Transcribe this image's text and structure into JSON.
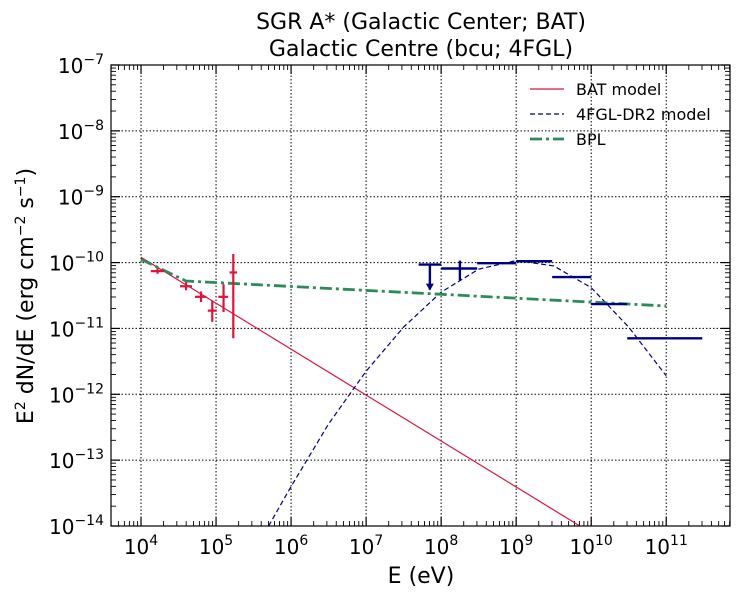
{
  "chart_data": {
    "type": "line",
    "title_lines": [
      "SGR A* (Galactic Center; BAT)",
      "Galactic Centre (bcu; 4FGL)"
    ],
    "xlabel": "E (eV)",
    "ylabel": {
      "main": "E",
      "sup1": "2",
      "mid": " dN/dE (erg cm",
      "sup2": "−2",
      "mid2": " s",
      "sup3": "−1",
      "end": ")"
    },
    "xscale": "log",
    "yscale": "log",
    "xlim_log10": [
      3.6,
      11.85
    ],
    "ylim_log10": [
      -14,
      -7
    ],
    "grid": true,
    "legend_position": "top-right",
    "x_ticks": [
      {
        "base": "10",
        "exp": "4",
        "log": 4
      },
      {
        "base": "10",
        "exp": "5",
        "log": 5
      },
      {
        "base": "10",
        "exp": "6",
        "log": 6
      },
      {
        "base": "10",
        "exp": "7",
        "log": 7
      },
      {
        "base": "10",
        "exp": "8",
        "log": 8
      },
      {
        "base": "10",
        "exp": "9",
        "log": 9
      },
      {
        "base": "10",
        "exp": "10",
        "log": 10
      },
      {
        "base": "10",
        "exp": "11",
        "log": 11
      }
    ],
    "y_ticks": [
      {
        "base": "10",
        "exp": "−14",
        "log": -14
      },
      {
        "base": "10",
        "exp": "−13",
        "log": -13
      },
      {
        "base": "10",
        "exp": "−12",
        "log": -12
      },
      {
        "base": "10",
        "exp": "−11",
        "log": -11
      },
      {
        "base": "10",
        "exp": "−10",
        "log": -10
      },
      {
        "base": "10",
        "exp": "−9",
        "log": -9
      },
      {
        "base": "10",
        "exp": "−8",
        "log": -8
      },
      {
        "base": "10",
        "exp": "−7",
        "log": -7
      }
    ],
    "series": [
      {
        "name": "BAT model",
        "color": "#dc143c",
        "style": "solid",
        "width": 1.2,
        "points_log10": [
          [
            4.0,
            -9.92
          ],
          [
            9.85,
            -14.0
          ]
        ]
      },
      {
        "name": "4FGL-DR2 model",
        "color": "#000080",
        "style": "dashed",
        "width": 1.2,
        "points_log10": [
          [
            5.7,
            -14.0
          ],
          [
            6.0,
            -13.4
          ],
          [
            6.5,
            -12.45
          ],
          [
            7.0,
            -11.65
          ],
          [
            7.5,
            -10.98
          ],
          [
            8.0,
            -10.45
          ],
          [
            8.5,
            -10.1
          ],
          [
            9.0,
            -9.97
          ],
          [
            9.5,
            -10.05
          ],
          [
            10.0,
            -10.38
          ],
          [
            10.5,
            -10.98
          ],
          [
            11.0,
            -11.72
          ]
        ]
      },
      {
        "name": "BPL",
        "color": "#2e8b57",
        "style": "dashdot",
        "width": 2.8,
        "points_log10": [
          [
            4.0,
            -9.95
          ],
          [
            4.6,
            -10.28
          ],
          [
            11.0,
            -10.66
          ]
        ]
      }
    ],
    "bat_data": {
      "color": "#dc143c",
      "points_log10": [
        {
          "x": 4.22,
          "xlo": 4.13,
          "xhi": 4.31,
          "y": -10.13,
          "ylo": -10.17,
          "yhi": -10.09
        },
        {
          "x": 4.6,
          "xlo": 4.52,
          "xhi": 4.68,
          "y": -10.36,
          "ylo": -10.42,
          "yhi": -10.3
        },
        {
          "x": 4.8,
          "xlo": 4.72,
          "xhi": 4.87,
          "y": -10.52,
          "ylo": -10.6,
          "yhi": -10.44
        },
        {
          "x": 4.95,
          "xlo": 4.89,
          "xhi": 5.01,
          "y": -10.73,
          "ylo": -10.9,
          "yhi": -10.58
        },
        {
          "x": 5.1,
          "xlo": 5.03,
          "xhi": 5.16,
          "y": -10.52,
          "ylo": -10.75,
          "yhi": -10.33
        },
        {
          "x": 5.23,
          "xlo": 5.18,
          "xhi": 5.28,
          "y": -10.15,
          "ylo": -11.15,
          "yhi": -9.87
        }
      ]
    },
    "fermi_data": {
      "color": "#000080",
      "points_log10": [
        {
          "x": 7.85,
          "xlo": 7.7,
          "xhi": 8.0,
          "y": -10.03,
          "upper_limit": true,
          "ul_drop": 0.38
        },
        {
          "x": 8.25,
          "xlo": 8.0,
          "xhi": 8.48,
          "y": -10.09,
          "ylo": -10.27,
          "yhi": -9.97
        },
        {
          "x": 8.75,
          "xlo": 8.48,
          "xhi": 9.0,
          "y": -10.01
        },
        {
          "x": 9.24,
          "xlo": 9.0,
          "xhi": 9.48,
          "y": -9.98
        },
        {
          "x": 9.75,
          "xlo": 9.48,
          "xhi": 10.0,
          "y": -10.22
        },
        {
          "x": 10.24,
          "xlo": 10.0,
          "xhi": 10.48,
          "y": -10.63
        },
        {
          "x": 11.0,
          "xlo": 10.48,
          "xhi": 11.48,
          "y": -11.15
        }
      ]
    }
  }
}
